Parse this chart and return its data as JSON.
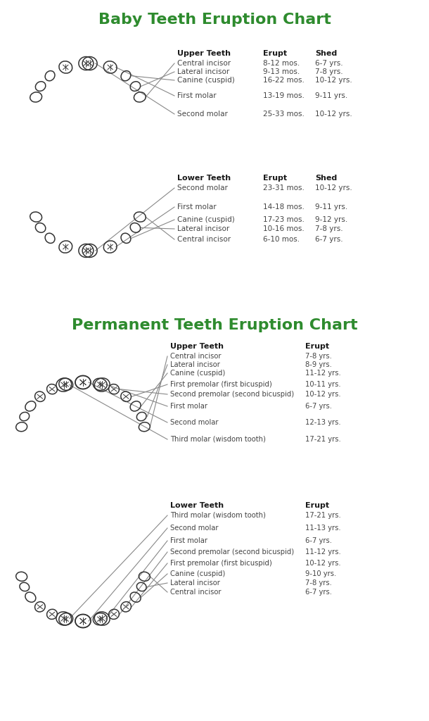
{
  "title1": "Baby Teeth Eruption Chart",
  "title2": "Permanent Teeth Eruption Chart",
  "title_color": "#2e8b2e",
  "title_fontsize": 16,
  "bg_color": "#ffffff",
  "baby_upper": {
    "header": [
      "Upper Teeth",
      "Erupt",
      "Shed"
    ],
    "rows": [
      [
        "Central incisor",
        "8-12 mos.",
        "6-7 yrs."
      ],
      [
        "Lateral incisor",
        "9-13 mos.",
        "7-8 yrs."
      ],
      [
        "Canine (cuspid)",
        "16-22 mos.",
        "10-12 yrs."
      ],
      [
        "First molar",
        "13-19 mos.",
        "9-11 yrs."
      ],
      [
        "Second molar",
        "25-33 mos.",
        "10-12 yrs."
      ]
    ]
  },
  "baby_lower": {
    "header": [
      "Lower Teeth",
      "Erupt",
      "Shed"
    ],
    "rows": [
      [
        "Second molar",
        "23-31 mos.",
        "10-12 yrs."
      ],
      [
        "First molar",
        "14-18 mos.",
        "9-11 yrs."
      ],
      [
        "Canine (cuspid)",
        "17-23 mos.",
        "9-12 yrs."
      ],
      [
        "Lateral incisor",
        "10-16 mos.",
        "7-8 yrs."
      ],
      [
        "Central incisor",
        "6-10 mos.",
        "6-7 yrs."
      ]
    ]
  },
  "perm_upper": {
    "header": [
      "Upper Teeth",
      "Erupt"
    ],
    "rows": [
      [
        "Central incisor",
        "7-8 yrs."
      ],
      [
        "Lateral incisor",
        "8-9 yrs."
      ],
      [
        "Canine (cuspid)",
        "11-12 yrs."
      ],
      [
        "First premolar (first bicuspid)",
        "10-11 yrs."
      ],
      [
        "Second premolar (second bicuspid)",
        "10-12 yrs."
      ],
      [
        "First molar",
        "6-7 yrs."
      ],
      [
        "Second molar",
        "12-13 yrs."
      ],
      [
        "Third molar (wisdom tooth)",
        "17-21 yrs."
      ]
    ]
  },
  "perm_lower": {
    "header": [
      "Lower Teeth",
      "Erupt"
    ],
    "rows": [
      [
        "Third molar (wisdom tooth)",
        "17-21 yrs."
      ],
      [
        "Second molar",
        "11-13 yrs."
      ],
      [
        "First molar",
        "6-7 yrs."
      ],
      [
        "Second premolar (second bicuspid)",
        "11-12 yrs."
      ],
      [
        "First premolar (first bicuspid)",
        "10-12 yrs."
      ],
      [
        "Canine (cuspid)",
        "9-10 yrs."
      ],
      [
        "Lateral incisor",
        "7-8 yrs."
      ],
      [
        "Central incisor",
        "6-7 yrs."
      ]
    ]
  }
}
